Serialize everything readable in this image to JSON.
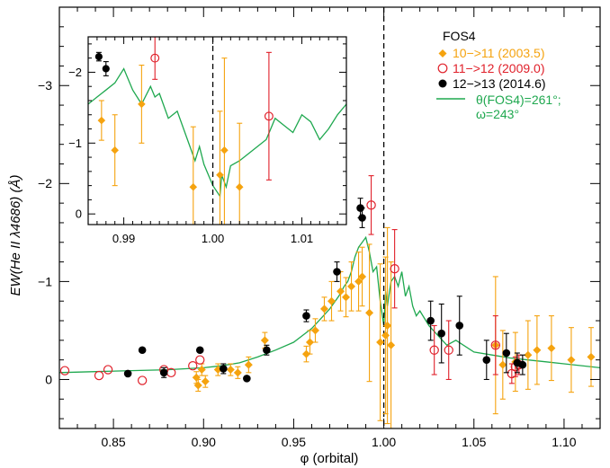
{
  "chart_data": {
    "type": "scatter",
    "xlabel": "φ (orbital)",
    "ylabel": "EW(He II λ4686) (Å)",
    "xlim": [
      0.82,
      1.12
    ],
    "ylim": [
      0.5,
      -3.8
    ],
    "xticks": [
      0.85,
      0.9,
      0.95,
      1.0,
      1.05,
      1.1
    ],
    "xtick_labels": [
      "0.85",
      "0.90",
      "0.95",
      "1.00",
      "1.05",
      "1.10"
    ],
    "yticks": [
      0,
      -1,
      -2,
      -3
    ],
    "ytick_labels": [
      "0",
      "−1",
      "−2",
      "−3"
    ],
    "vline": 1.0,
    "legend": {
      "title": "FOS4",
      "placement": "top-right",
      "model_label_line1": "θ(FOS4)=261°;",
      "model_label_line2": "ω=243°"
    },
    "colors": {
      "orange": "#F5A30F",
      "red": "#E0202A",
      "black": "#000000",
      "green": "#1FA84F"
    },
    "series": [
      {
        "name": "10−>11 (2003.5)",
        "marker": "diamond",
        "color": "#F5A30F",
        "points": [
          {
            "x": 0.896,
            "y": -0.02,
            "err": 0.06
          },
          {
            "x": 0.897,
            "y": 0.06,
            "err": 0.06
          },
          {
            "x": 0.899,
            "y": -0.1,
            "err": 0.06
          },
          {
            "x": 0.901,
            "y": 0.02,
            "err": 0.06
          },
          {
            "x": 0.908,
            "y": -0.1,
            "err": 0.06
          },
          {
            "x": 0.915,
            "y": -0.1,
            "err": 0.06
          },
          {
            "x": 0.919,
            "y": -0.07,
            "err": 0.06
          },
          {
            "x": 0.925,
            "y": -0.15,
            "err": 0.08
          },
          {
            "x": 0.934,
            "y": -0.4,
            "err": 0.08
          },
          {
            "x": 0.957,
            "y": -0.26,
            "err": 0.08
          },
          {
            "x": 0.959,
            "y": -0.38,
            "err": 0.12
          },
          {
            "x": 0.962,
            "y": -0.5,
            "err": 0.12
          },
          {
            "x": 0.967,
            "y": -0.72,
            "err": 0.12
          },
          {
            "x": 0.971,
            "y": -0.8,
            "err": 0.2
          },
          {
            "x": 0.976,
            "y": -0.9,
            "err": 0.2
          },
          {
            "x": 0.979,
            "y": -0.84,
            "err": 0.2
          },
          {
            "x": 0.982,
            "y": -0.95,
            "err": 0.25
          },
          {
            "x": 0.986,
            "y": -1.0,
            "err": 0.3
          },
          {
            "x": 0.988,
            "y": -1.05,
            "err": 0.3
          },
          {
            "x": 0.992,
            "y": -0.68,
            "err": 0.7
          },
          {
            "x": 0.998,
            "y": -0.38,
            "err": 0.8
          },
          {
            "x": 1.001,
            "y": -0.45,
            "err": 0.8
          },
          {
            "x": 1.002,
            "y": -0.55,
            "err": 1.0
          },
          {
            "x": 1.004,
            "y": -0.35,
            "err": 0.85
          },
          {
            "x": 1.062,
            "y": -0.35,
            "err": 0.7
          },
          {
            "x": 1.066,
            "y": -0.15,
            "err": 0.35
          },
          {
            "x": 1.073,
            "y": -0.18,
            "err": 0.3
          },
          {
            "x": 1.08,
            "y": -0.25,
            "err": 0.35
          },
          {
            "x": 1.085,
            "y": -0.3,
            "err": 0.35
          },
          {
            "x": 1.093,
            "y": -0.32,
            "err": 0.33
          },
          {
            "x": 1.104,
            "y": -0.2,
            "err": 0.33
          },
          {
            "x": 1.115,
            "y": -0.23,
            "err": 0.3
          }
        ]
      },
      {
        "name": "11−>12 (2009.0)",
        "marker": "open-circle",
        "color": "#E0202A",
        "points": [
          {
            "x": 0.823,
            "y": -0.09,
            "err": 0
          },
          {
            "x": 0.842,
            "y": -0.04,
            "err": 0
          },
          {
            "x": 0.847,
            "y": -0.1,
            "err": 0
          },
          {
            "x": 0.866,
            "y": 0.01,
            "err": 0
          },
          {
            "x": 0.878,
            "y": -0.1,
            "err": 0
          },
          {
            "x": 0.882,
            "y": -0.07,
            "err": 0
          },
          {
            "x": 0.894,
            "y": -0.14,
            "err": 0
          },
          {
            "x": 0.898,
            "y": -0.2,
            "err": 0
          },
          {
            "x": 0.993,
            "y": -1.78,
            "err": 0.3
          },
          {
            "x": 1.006,
            "y": -1.13,
            "err": 0.4
          },
          {
            "x": 1.028,
            "y": -0.3,
            "err": 0.25
          },
          {
            "x": 1.036,
            "y": -0.3,
            "err": 0.3
          },
          {
            "x": 1.062,
            "y": -0.35,
            "err": 0.3
          },
          {
            "x": 1.071,
            "y": -0.06,
            "err": 0.1
          },
          {
            "x": 1.073,
            "y": -0.13,
            "err": 0.1
          },
          {
            "x": 1.075,
            "y": -0.15,
            "err": 0.1
          }
        ]
      },
      {
        "name": "12−>13 (2014.6)",
        "marker": "filled-circle",
        "color": "#000000",
        "points": [
          {
            "x": 0.858,
            "y": -0.06,
            "err": 0
          },
          {
            "x": 0.866,
            "y": -0.3,
            "err": 0
          },
          {
            "x": 0.878,
            "y": -0.07,
            "err": 0.05
          },
          {
            "x": 0.898,
            "y": -0.3,
            "err": 0
          },
          {
            "x": 0.911,
            "y": -0.11,
            "err": 0.05
          },
          {
            "x": 0.924,
            "y": -0.01,
            "err": 0
          },
          {
            "x": 0.935,
            "y": -0.3,
            "err": 0.05
          },
          {
            "x": 0.957,
            "y": -0.65,
            "err": 0.06
          },
          {
            "x": 0.974,
            "y": -1.1,
            "err": 0.1
          },
          {
            "x": 0.987,
            "y": -1.75,
            "err": 0.1
          },
          {
            "x": 0.988,
            "y": -1.65,
            "err": 0.1
          },
          {
            "x": 1.026,
            "y": -0.6,
            "err": 0.2
          },
          {
            "x": 1.032,
            "y": -0.47,
            "err": 0.3
          },
          {
            "x": 1.042,
            "y": -0.55,
            "err": 0.3
          },
          {
            "x": 1.057,
            "y": -0.2,
            "err": 0.2
          },
          {
            "x": 1.068,
            "y": -0.27,
            "err": 0.2
          },
          {
            "x": 1.074,
            "y": -0.17,
            "err": 0.1
          },
          {
            "x": 1.077,
            "y": -0.15,
            "err": 0.1
          }
        ]
      }
    ],
    "model": {
      "name": "θ(FOS4)=261°; ω=243°",
      "color": "#1FA84F",
      "x": [
        0.82,
        0.84,
        0.86,
        0.88,
        0.9,
        0.91,
        0.92,
        0.93,
        0.94,
        0.95,
        0.955,
        0.96,
        0.965,
        0.97,
        0.975,
        0.978,
        0.98,
        0.982,
        0.984,
        0.986,
        0.988,
        0.99,
        0.992,
        0.994,
        0.996,
        0.998,
        1.0,
        1.001,
        1.002,
        1.004,
        1.006,
        1.008,
        1.01,
        1.012,
        1.014,
        1.016,
        1.018,
        1.02,
        1.025,
        1.03,
        1.035,
        1.04,
        1.05,
        1.06,
        1.07,
        1.08,
        1.09,
        1.1,
        1.12
      ],
      "y": [
        -0.07,
        -0.08,
        -0.09,
        -0.1,
        -0.12,
        -0.14,
        -0.17,
        -0.23,
        -0.3,
        -0.38,
        -0.45,
        -0.52,
        -0.62,
        -0.72,
        -0.85,
        -0.95,
        -1.0,
        -1.1,
        -1.25,
        -1.35,
        -1.4,
        -1.45,
        -1.3,
        -1.1,
        -1.15,
        -0.8,
        -0.55,
        -0.9,
        -0.75,
        -1.0,
        -1.05,
        -0.95,
        -1.1,
        -0.85,
        -0.95,
        -0.75,
        -0.65,
        -0.7,
        -0.55,
        -0.45,
        -0.35,
        -0.4,
        -0.28,
        -0.25,
        -0.22,
        -0.2,
        -0.18,
        -0.16,
        -0.12
      ]
    },
    "inset": {
      "xlim": [
        0.986,
        1.015
      ],
      "ylim": [
        0.15,
        -2.5
      ],
      "xticks": [
        0.99,
        1.0,
        1.01
      ],
      "xtick_labels": [
        "0.99",
        "1.00",
        "1.01"
      ],
      "yticks": [
        0,
        -1,
        -2
      ],
      "ytick_labels": [
        "0",
        "−1",
        "−2"
      ],
      "vline": 1.0,
      "points": [
        {
          "series": 2,
          "x": 0.9872,
          "y": -2.22,
          "err": 0.06
        },
        {
          "series": 2,
          "x": 0.988,
          "y": -2.05,
          "err": 0.1
        },
        {
          "series": 1,
          "x": 0.9935,
          "y": -2.2,
          "err": 0.3
        },
        {
          "series": 0,
          "x": 0.9875,
          "y": -1.32,
          "err": 0.28
        },
        {
          "series": 0,
          "x": 0.989,
          "y": -0.9,
          "err": 0.5
        },
        {
          "series": 0,
          "x": 0.992,
          "y": -1.55,
          "err": 0.55
        },
        {
          "series": 0,
          "x": 0.9978,
          "y": -0.38,
          "err": 0.85
        },
        {
          "series": 0,
          "x": 1.0008,
          "y": -0.55,
          "err": 0.9
        },
        {
          "series": 0,
          "x": 1.0013,
          "y": -0.9,
          "err": 1.3
        },
        {
          "series": 0,
          "x": 1.003,
          "y": -0.38,
          "err": 0.9
        },
        {
          "series": 1,
          "x": 1.0063,
          "y": -1.38,
          "err": 0.9
        }
      ],
      "model_x": [
        0.986,
        0.987,
        0.9875,
        0.988,
        0.989,
        0.99,
        0.991,
        0.992,
        0.993,
        0.9935,
        0.994,
        0.995,
        0.996,
        0.997,
        0.998,
        0.9985,
        0.999,
        1.0,
        1.0008,
        1.001,
        1.0015,
        1.002,
        1.003,
        1.004,
        1.005,
        1.006,
        1.0065,
        1.007,
        1.008,
        1.009,
        1.01,
        1.011,
        1.012,
        1.013,
        1.014,
        1.015
      ],
      "model_y": [
        -1.55,
        -1.65,
        -1.7,
        -1.75,
        -1.85,
        -2.05,
        -1.75,
        -1.55,
        -1.8,
        -1.65,
        -1.7,
        -1.35,
        -1.45,
        -1.1,
        -0.75,
        -0.95,
        -0.7,
        -0.4,
        -0.25,
        -0.55,
        -0.38,
        -0.68,
        -0.75,
        -0.85,
        -0.95,
        -1.05,
        -1.2,
        -1.35,
        -1.25,
        -1.15,
        -1.4,
        -1.3,
        -1.05,
        -1.2,
        -1.4,
        -1.55
      ]
    }
  }
}
